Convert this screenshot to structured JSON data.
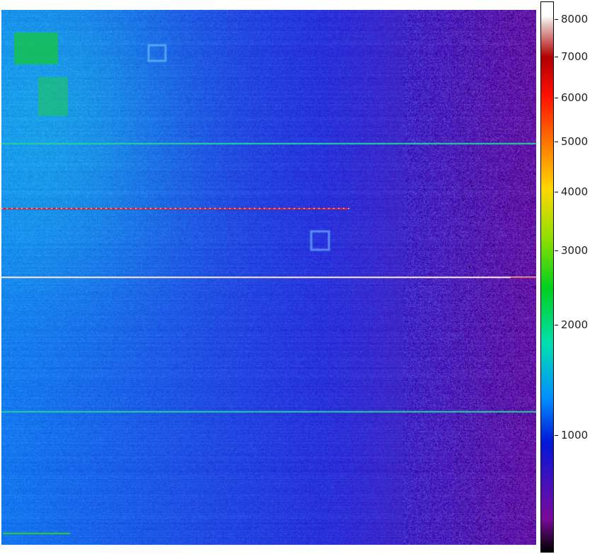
{
  "chart_data": {
    "type": "heatmap",
    "title": "",
    "xlabel": "",
    "ylabel": "",
    "colormap": [
      "#000000",
      "#7a0a9a",
      "#4a10b8",
      "#0018d8",
      "#0090ff",
      "#00e0b0",
      "#00d020",
      "#90e000",
      "#ffd800",
      "#ff8000",
      "#ff1000",
      "#b00000",
      "#ffffff"
    ],
    "colorbar": {
      "scale": "nonlinear",
      "range": [
        400,
        8400
      ],
      "ticks": [
        {
          "value": 8000,
          "label": "8000"
        },
        {
          "value": 7000,
          "label": "7000"
        },
        {
          "value": 6000,
          "label": "6000"
        },
        {
          "value": 5000,
          "label": "5000"
        },
        {
          "value": 4000,
          "label": "4000"
        },
        {
          "value": 3000,
          "label": "3000"
        },
        {
          "value": 2000,
          "label": "2000"
        },
        {
          "value": 1000,
          "label": "1000"
        }
      ]
    }
  }
}
